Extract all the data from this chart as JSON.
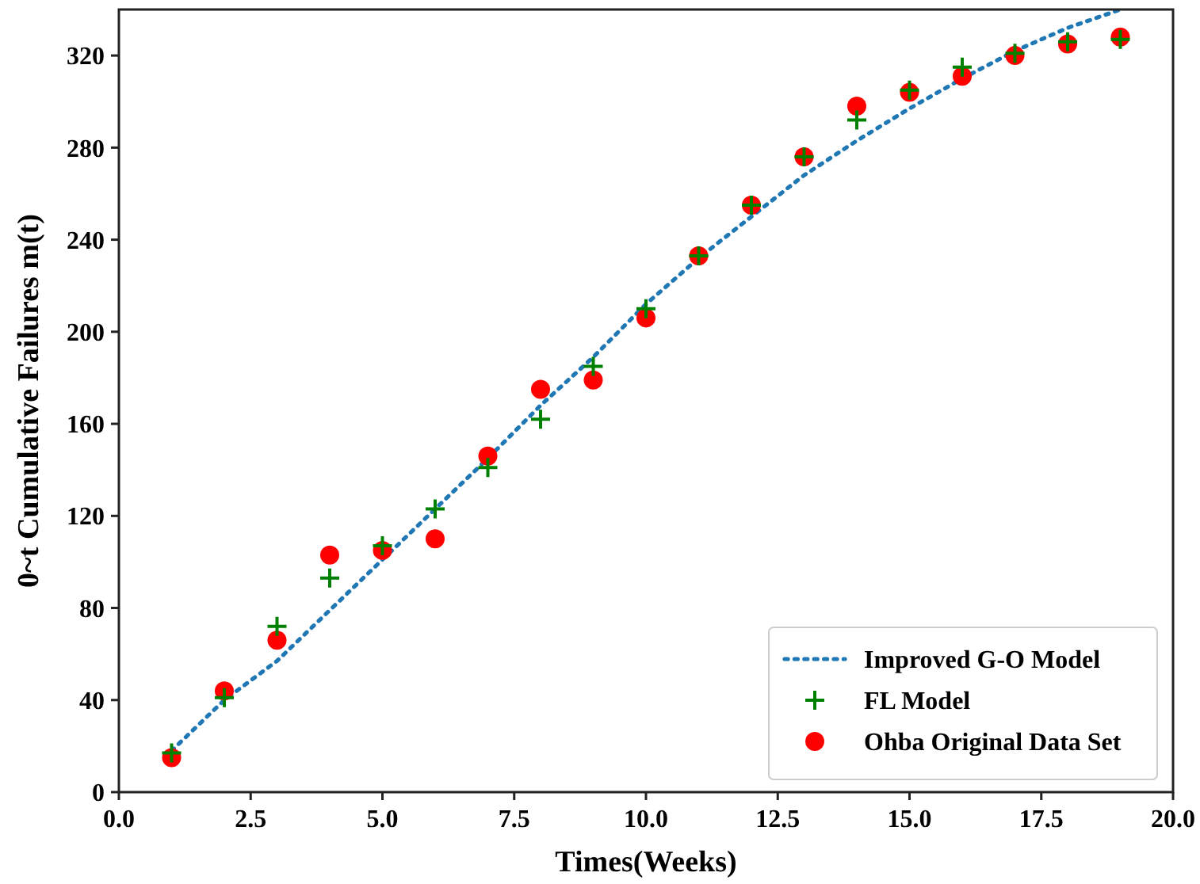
{
  "chart_data": {
    "type": "scatter",
    "xlabel": "Times(Weeks)",
    "ylabel": "0~t Cumulative Failures m(t)",
    "xlim": [
      0,
      20
    ],
    "ylim": [
      0,
      340
    ],
    "xticks": [
      {
        "value": 0,
        "label": "0.0"
      },
      {
        "value": 2.5,
        "label": "2.5"
      },
      {
        "value": 5,
        "label": "5.0"
      },
      {
        "value": 7.5,
        "label": "7.5"
      },
      {
        "value": 10,
        "label": "10.0"
      },
      {
        "value": 12.5,
        "label": "12.5"
      },
      {
        "value": 15,
        "label": "15.0"
      },
      {
        "value": 17.5,
        "label": "17.5"
      },
      {
        "value": 20,
        "label": "20.0"
      }
    ],
    "yticks": [
      0,
      40,
      80,
      120,
      160,
      200,
      240,
      280,
      320
    ],
    "x": [
      1,
      2,
      3,
      4,
      5,
      6,
      7,
      8,
      9,
      10,
      11,
      12,
      13,
      14,
      15,
      16,
      17,
      18,
      19
    ],
    "legend": "bottom right",
    "series": [
      {
        "name": "Improved G-O Model",
        "type": "line",
        "line_style": "dotted",
        "marker": "none",
        "color": "#1f77b4",
        "values": [
          18,
          40,
          57,
          79,
          101,
          123,
          145,
          168,
          189,
          212,
          232,
          250,
          268,
          283,
          297,
          310,
          322,
          332,
          340
        ]
      },
      {
        "name": "FL Model",
        "marker": "cross",
        "color": "#008000",
        "values": [
          17,
          41,
          72,
          93,
          107,
          123,
          141,
          162,
          185,
          210,
          233,
          255,
          276,
          292,
          305,
          315,
          321,
          326,
          327
        ]
      },
      {
        "name": "Ohba Original Data Set",
        "marker": "circle",
        "color": "#ff0000",
        "values": [
          15,
          44,
          66,
          103,
          105,
          110,
          146,
          175,
          179,
          206,
          233,
          255,
          276,
          298,
          304,
          311,
          320,
          325,
          328
        ]
      }
    ]
  }
}
